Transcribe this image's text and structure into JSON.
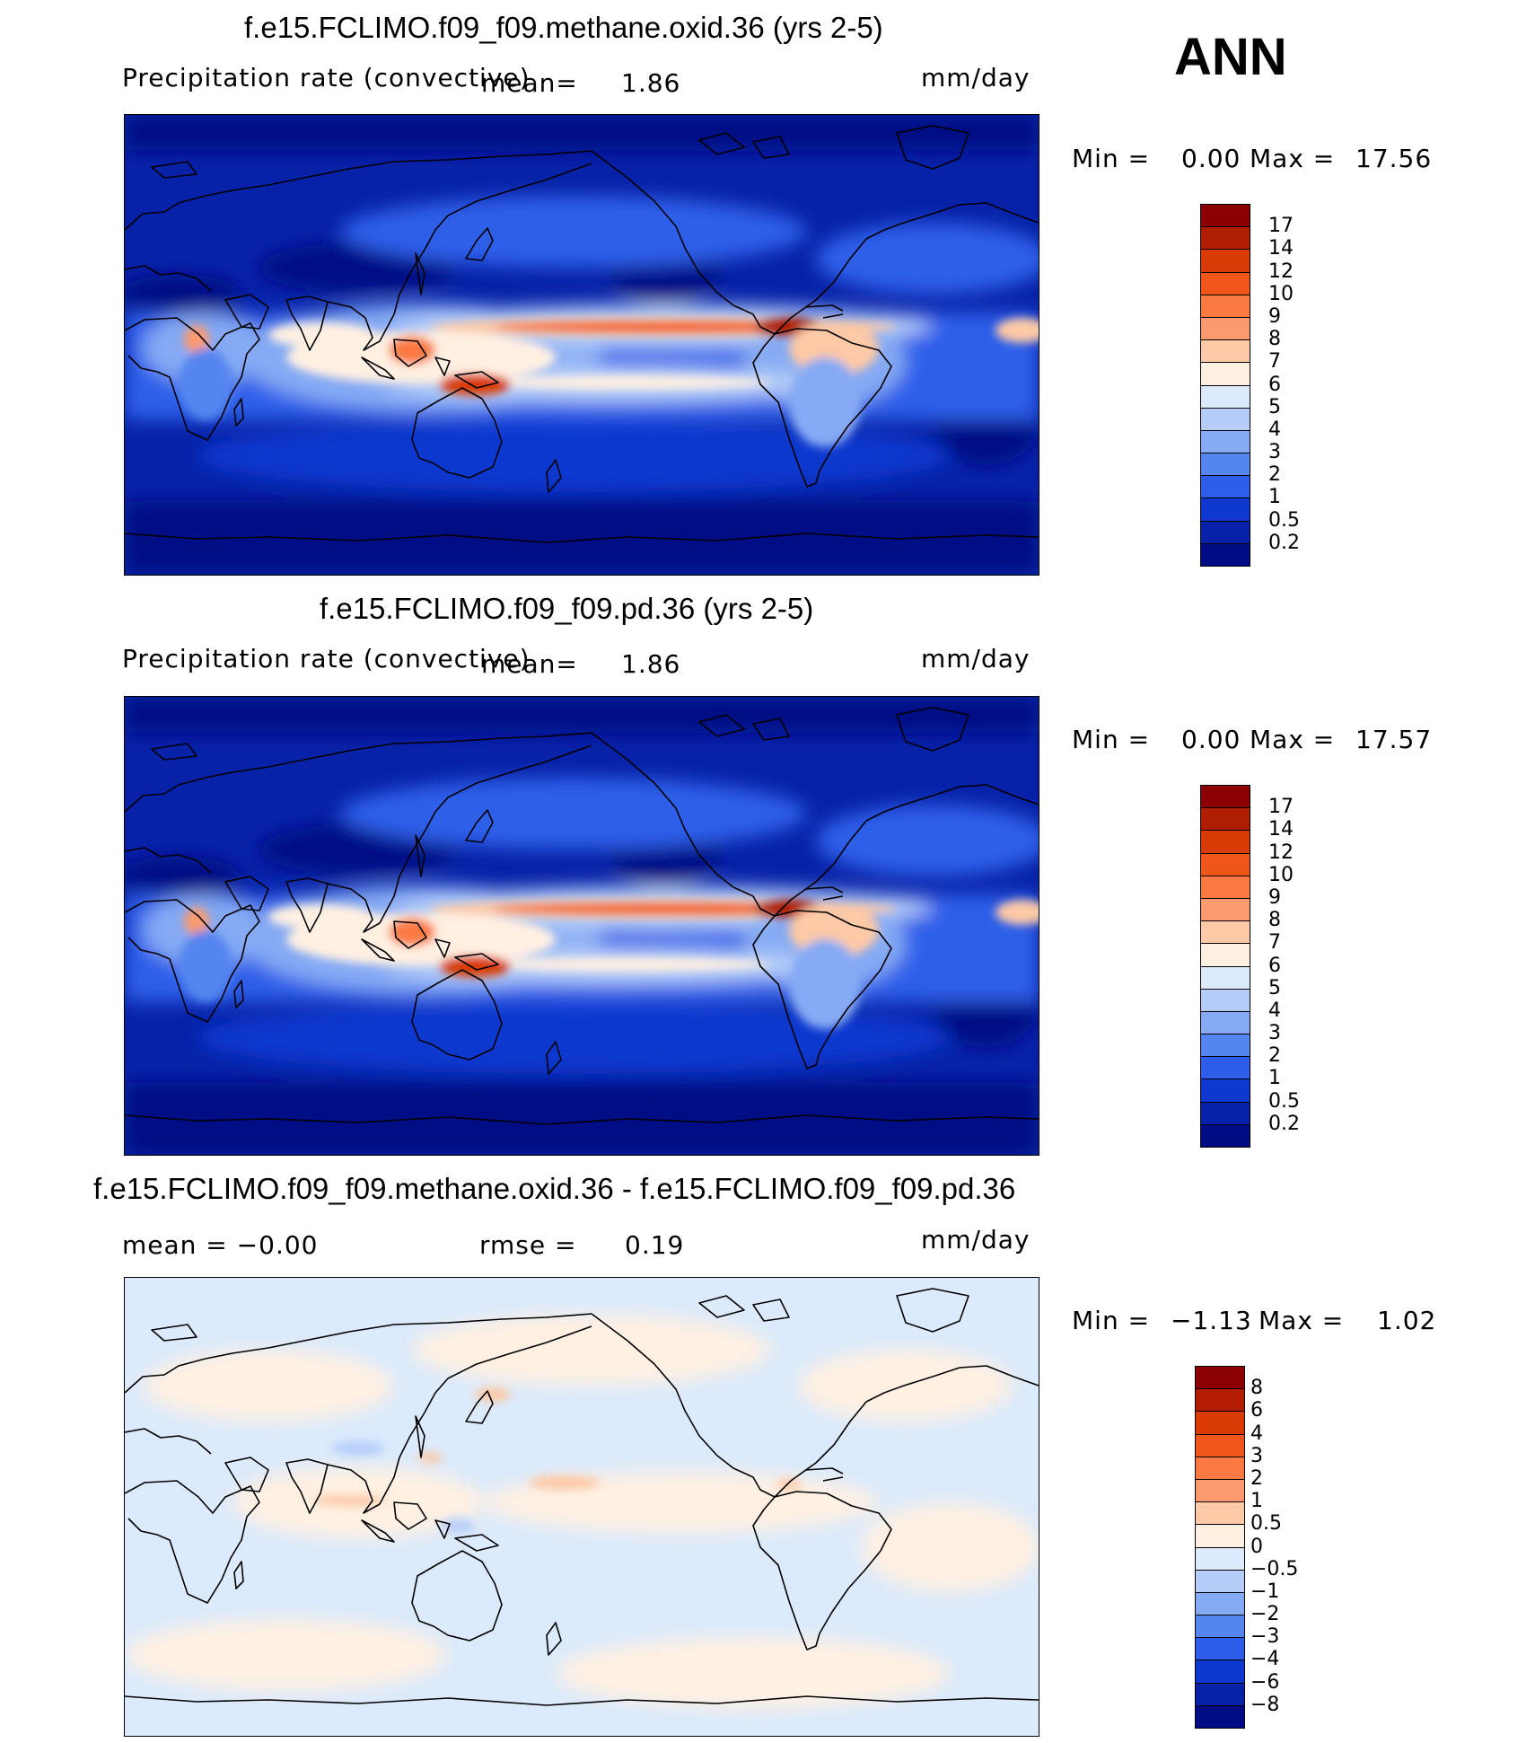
{
  "season": "ANN",
  "panels": [
    {
      "title": "f.e15.FCLIMO.f09_f09.methane.oxid.36 (yrs 2-5)",
      "left_label": "Precipitation rate (convective)",
      "mid_label": "mean=",
      "mid_value": "1.86",
      "units": "mm/day",
      "minmax": {
        "min_label": "Min =",
        "min": "0.00",
        "max_label": "Max =",
        "max": "17.56"
      },
      "kind": "abs"
    },
    {
      "title": "f.e15.FCLIMO.f09_f09.pd.36 (yrs 2-5)",
      "left_label": "Precipitation rate (convective)",
      "mid_label": "mean=",
      "mid_value": "1.86",
      "units": "mm/day",
      "minmax": {
        "min_label": "Min =",
        "min": "0.00",
        "max_label": "Max =",
        "max": "17.57"
      },
      "kind": "abs"
    },
    {
      "title": "f.e15.FCLIMO.f09_f09.methane.oxid.36 - f.e15.FCLIMO.f09_f09.pd.36",
      "left_label": "mean = −0.00",
      "mid_label": "rmse =",
      "mid_value": "0.19",
      "units": "mm/day",
      "minmax": {
        "min_label": "Min =",
        "min": "−1.13",
        "max_label": "Max =",
        "max": "1.02"
      },
      "kind": "diff"
    }
  ],
  "colorbars": {
    "abs": {
      "labels": [
        "17",
        "14",
        "12",
        "10",
        "9",
        "8",
        "7",
        "6",
        "5",
        "4",
        "3",
        "2",
        "1",
        "0.5",
        "0.2"
      ],
      "colors": [
        "#8b0000",
        "#b01e00",
        "#d93a06",
        "#f05519",
        "#fa7a42",
        "#fb9a6e",
        "#fdc9a6",
        "#fff0e2",
        "#dbeafc",
        "#b5cef9",
        "#86aaf4",
        "#5585ef",
        "#2e5ee9",
        "#0e38cf",
        "#0722a8",
        "#000c84"
      ]
    },
    "diff": {
      "labels": [
        "8",
        "6",
        "4",
        "3",
        "2",
        "1",
        "0.5",
        "0",
        "−0.5",
        "−1",
        "−2",
        "−3",
        "−4",
        "−6",
        "−8"
      ],
      "colors": [
        "#8b0000",
        "#b31c00",
        "#d93a06",
        "#f05519",
        "#fa7a42",
        "#fb9a6e",
        "#fdc9a6",
        "#fff0e2",
        "#dbeafc",
        "#b5cef9",
        "#86aaf4",
        "#5585ef",
        "#2e5ee9",
        "#0e38cf",
        "#0722a8",
        "#000c84"
      ]
    }
  },
  "chart_data": [
    {
      "type": "heatmap",
      "title": "f.e15.FCLIMO.f09_f09.methane.oxid.36 (yrs 2-5)",
      "variable": "Precipitation rate (convective)",
      "units": "mm/day",
      "mean": 1.86,
      "min": 0.0,
      "max": 17.56,
      "levels": [
        0.2,
        0.5,
        1,
        2,
        3,
        4,
        5,
        6,
        7,
        8,
        9,
        10,
        12,
        14,
        17
      ]
    },
    {
      "type": "heatmap",
      "title": "f.e15.FCLIMO.f09_f09.pd.36 (yrs 2-5)",
      "variable": "Precipitation rate (convective)",
      "units": "mm/day",
      "mean": 1.86,
      "min": 0.0,
      "max": 17.57,
      "levels": [
        0.2,
        0.5,
        1,
        2,
        3,
        4,
        5,
        6,
        7,
        8,
        9,
        10,
        12,
        14,
        17
      ]
    },
    {
      "type": "heatmap",
      "title": "f.e15.FCLIMO.f09_f09.methane.oxid.36 - f.e15.FCLIMO.f09_f09.pd.36",
      "units": "mm/day",
      "mean": -0.0,
      "rmse": 0.19,
      "min": -1.13,
      "max": 1.02,
      "levels": [
        -8,
        -6,
        -4,
        -3,
        -2,
        -1,
        -0.5,
        0,
        0.5,
        1,
        2,
        3,
        4,
        6,
        8
      ]
    }
  ]
}
